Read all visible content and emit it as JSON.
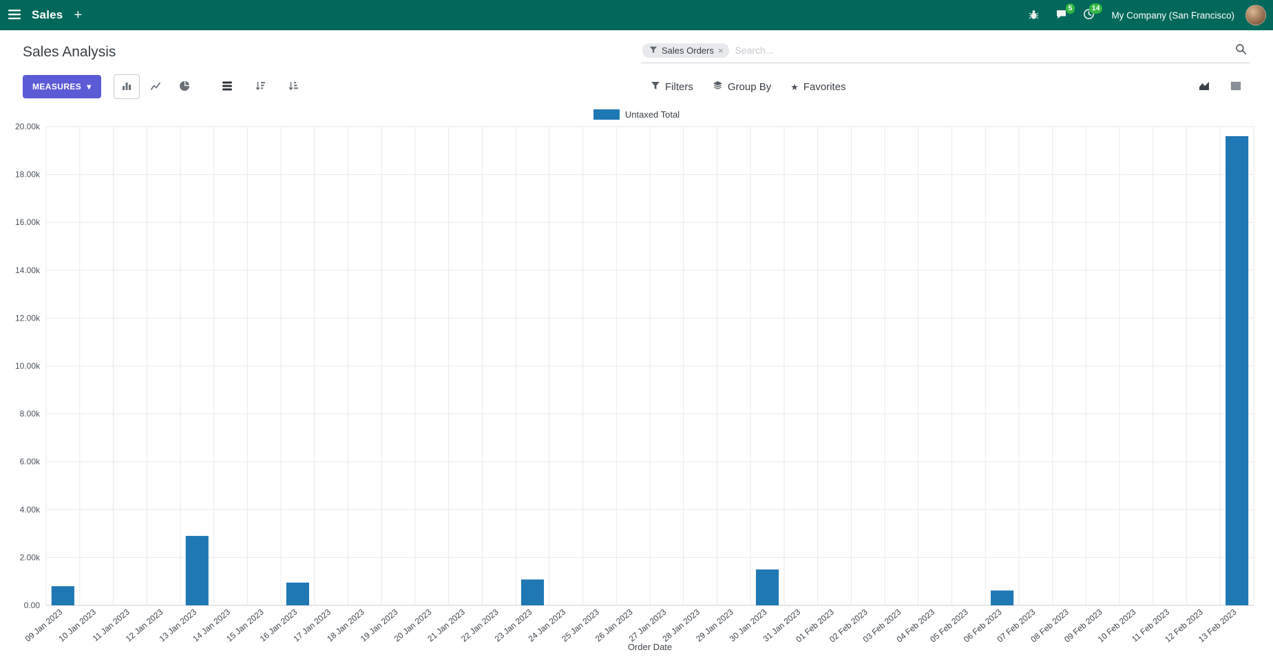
{
  "colors": {
    "navbar_bg": "#01685b",
    "primary": "#5c5bd6",
    "bar": "#1f77b4",
    "badge": "#32b643"
  },
  "navbar": {
    "app_name": "Sales",
    "company": "My Company (San Francisco)",
    "messages_badge": "5",
    "activities_badge": "14"
  },
  "control_panel": {
    "title": "Sales Analysis",
    "measures_label": "MEASURES",
    "search": {
      "facet_label": "Sales Orders",
      "remove_facet": "×",
      "placeholder": "Search..."
    },
    "filters_label": "Filters",
    "group_by_label": "Group By",
    "favorites_label": "Favorites"
  },
  "icons": {
    "hamburger": "svg",
    "plus": "+",
    "bug": "svg",
    "messages": "svg",
    "activities_clock": "svg",
    "search": "svg",
    "filter_funnel": "svg",
    "group_by_layers": "svg",
    "favorites_star": "★",
    "caret_down": "▾",
    "close": "×",
    "bar_chart": "svg",
    "line_chart": "svg",
    "pie_chart": "svg",
    "stacked": "svg",
    "sort_desc": "svg",
    "sort_asc": "svg",
    "area_chart_view": "svg",
    "pivot_view": "svg"
  },
  "chart_data": {
    "type": "bar",
    "title": "",
    "xlabel": "Order Date",
    "ylabel": "",
    "ylim": [
      0,
      20000
    ],
    "grid": true,
    "legend_position": "top",
    "y_tick_labels": [
      "0.00",
      "2.00k",
      "4.00k",
      "6.00k",
      "8.00k",
      "10.00k",
      "12.00k",
      "14.00k",
      "16.00k",
      "18.00k",
      "20.00k"
    ],
    "categories": [
      "09 Jan 2023",
      "10 Jan 2023",
      "11 Jan 2023",
      "12 Jan 2023",
      "13 Jan 2023",
      "14 Jan 2023",
      "15 Jan 2023",
      "16 Jan 2023",
      "17 Jan 2023",
      "18 Jan 2023",
      "19 Jan 2023",
      "20 Jan 2023",
      "21 Jan 2023",
      "22 Jan 2023",
      "23 Jan 2023",
      "24 Jan 2023",
      "25 Jan 2023",
      "26 Jan 2023",
      "27 Jan 2023",
      "28 Jan 2023",
      "29 Jan 2023",
      "30 Jan 2023",
      "31 Jan 2023",
      "01 Feb 2023",
      "02 Feb 2023",
      "03 Feb 2023",
      "04 Feb 2023",
      "05 Feb 2023",
      "06 Feb 2023",
      "07 Feb 2023",
      "08 Feb 2023",
      "09 Feb 2023",
      "10 Feb 2023",
      "11 Feb 2023",
      "12 Feb 2023",
      "13 Feb 2023"
    ],
    "series": [
      {
        "name": "Untaxed Total",
        "color": "#1f77b4",
        "values": [
          800,
          0,
          0,
          0,
          2900,
          0,
          0,
          950,
          0,
          0,
          0,
          0,
          0,
          0,
          1080,
          0,
          0,
          0,
          0,
          0,
          0,
          1500,
          0,
          0,
          0,
          0,
          0,
          0,
          620,
          0,
          0,
          0,
          0,
          0,
          0,
          19600
        ]
      }
    ]
  }
}
